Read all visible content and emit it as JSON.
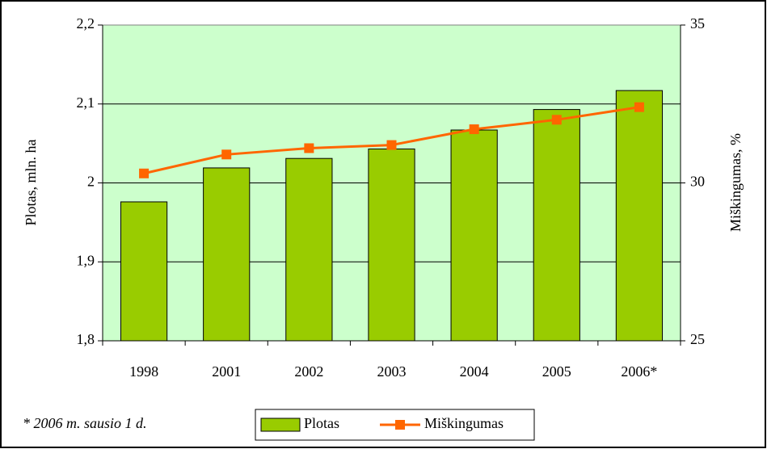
{
  "chart_data": {
    "type": "bar_line",
    "categories": [
      "1998",
      "2001",
      "2002",
      "2003",
      "2004",
      "2005",
      "2006*"
    ],
    "series": [
      {
        "name": "Plotas",
        "type": "bar",
        "color": "#99cc00",
        "values": [
          1.976,
          2.019,
          2.031,
          2.043,
          2.067,
          2.093,
          2.117
        ]
      },
      {
        "name": "Miškingumas",
        "type": "line",
        "axis": "y2",
        "color": "#ff6600",
        "values": [
          30.3,
          30.9,
          31.1,
          31.2,
          31.7,
          32.0,
          32.4
        ]
      }
    ],
    "ylabel": "Plotas, mln. ha",
    "y2label": "Miškingumas, %",
    "ylim": [
      1.8,
      2.2
    ],
    "yticks": [
      {
        "value": 1.8,
        "label": "1,8"
      },
      {
        "value": 1.9,
        "label": "1,9"
      },
      2,
      {
        "value": 2.1,
        "label": "2,1"
      },
      {
        "value": 2.2,
        "label": "2,2"
      }
    ],
    "y2lim": [
      25,
      35
    ],
    "y2ticks": [
      25,
      30,
      35
    ],
    "grid": true,
    "background": "#ccffcc",
    "legend": "bottom",
    "note": "* 2006 m. sausio 1 d."
  }
}
